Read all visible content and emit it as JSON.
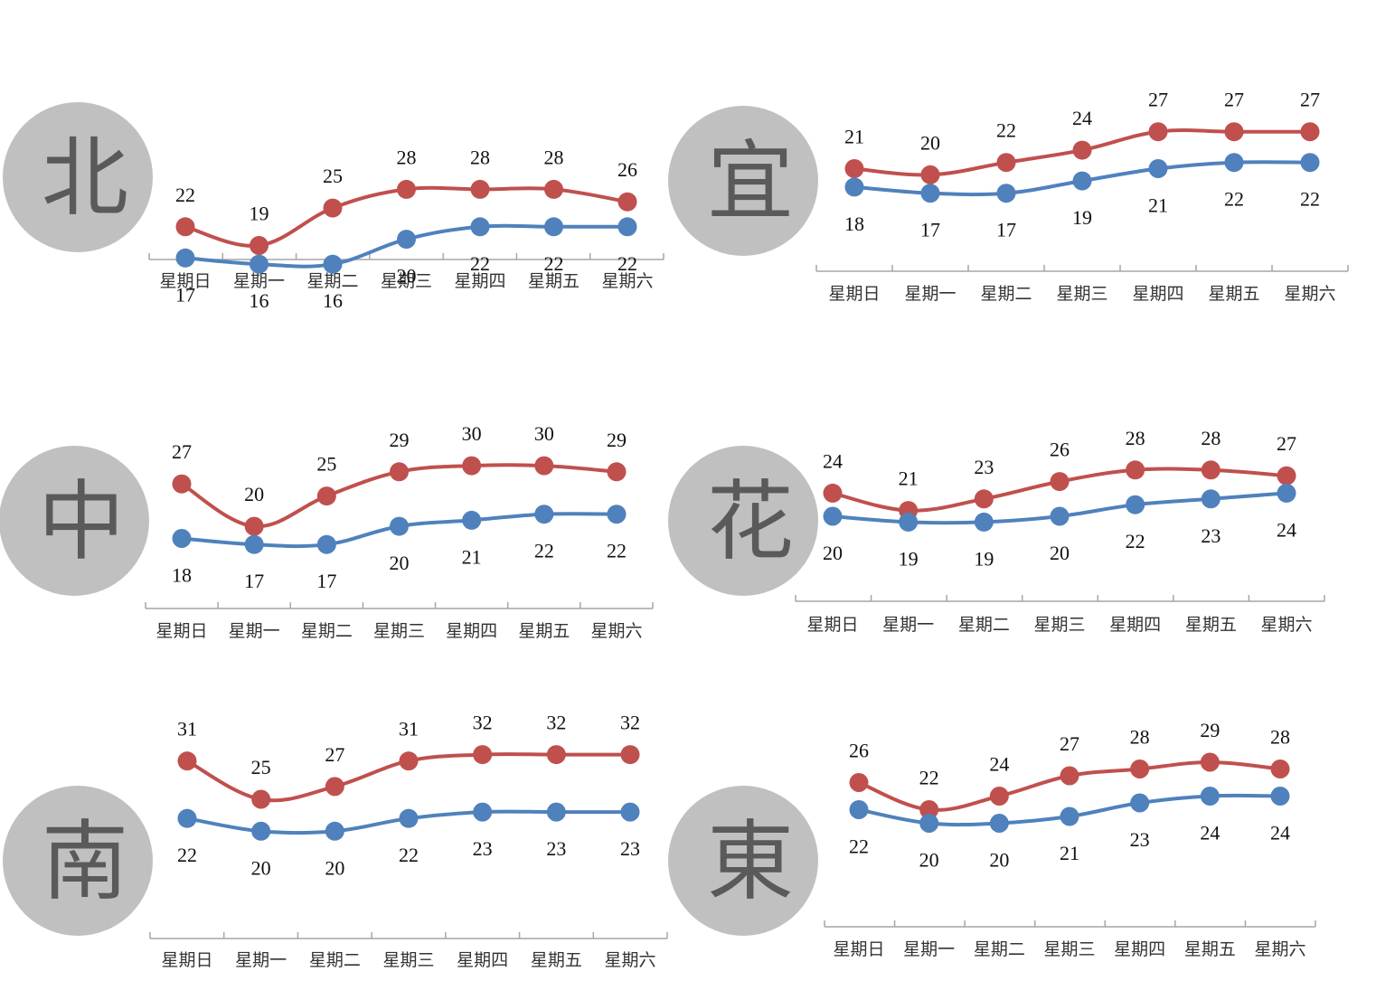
{
  "colors": {
    "high": "#c0504d",
    "low": "#4f81bd",
    "axis": "#a6a6a6",
    "circle": "#c0c0c0"
  },
  "chart_data": [
    {
      "type": "line",
      "region": "北",
      "categories": [
        "星期日",
        "星期一",
        "星期二",
        "星期三",
        "星期四",
        "星期五",
        "星期六"
      ],
      "series": [
        {
          "values": [
            22,
            19,
            25,
            28,
            28,
            28,
            26
          ]
        },
        {
          "values": [
            17,
            16,
            16,
            20,
            22,
            22,
            22
          ]
        }
      ]
    },
    {
      "type": "line",
      "region": "宜",
      "categories": [
        "星期日",
        "星期一",
        "星期二",
        "星期三",
        "星期四",
        "星期五",
        "星期六"
      ],
      "series": [
        {
          "values": [
            21,
            20,
            22,
            24,
            27,
            27,
            27
          ]
        },
        {
          "values": [
            18,
            17,
            17,
            19,
            21,
            22,
            22
          ]
        }
      ]
    },
    {
      "type": "line",
      "region": "中",
      "categories": [
        "星期日",
        "星期一",
        "星期二",
        "星期三",
        "星期四",
        "星期五",
        "星期六"
      ],
      "series": [
        {
          "values": [
            27,
            20,
            25,
            29,
            30,
            30,
            29
          ]
        },
        {
          "values": [
            18,
            17,
            17,
            20,
            21,
            22,
            22
          ]
        }
      ]
    },
    {
      "type": "line",
      "region": "花",
      "categories": [
        "星期日",
        "星期一",
        "星期二",
        "星期三",
        "星期四",
        "星期五",
        "星期六"
      ],
      "series": [
        {
          "values": [
            24,
            21,
            23,
            26,
            28,
            28,
            27
          ]
        },
        {
          "values": [
            20,
            19,
            19,
            20,
            22,
            23,
            24
          ]
        }
      ]
    },
    {
      "type": "line",
      "region": "南",
      "categories": [
        "星期日",
        "星期一",
        "星期二",
        "星期三",
        "星期四",
        "星期五",
        "星期六"
      ],
      "series": [
        {
          "values": [
            31,
            25,
            27,
            31,
            32,
            32,
            32
          ]
        },
        {
          "values": [
            22,
            20,
            20,
            22,
            23,
            23,
            23
          ]
        }
      ]
    },
    {
      "type": "line",
      "region": "東",
      "categories": [
        "星期日",
        "星期一",
        "星期二",
        "星期三",
        "星期四",
        "星期五",
        "星期六"
      ],
      "series": [
        {
          "values": [
            26,
            22,
            24,
            27,
            28,
            29,
            28
          ]
        },
        {
          "values": [
            22,
            20,
            20,
            21,
            23,
            24,
            24
          ]
        }
      ]
    }
  ]
}
